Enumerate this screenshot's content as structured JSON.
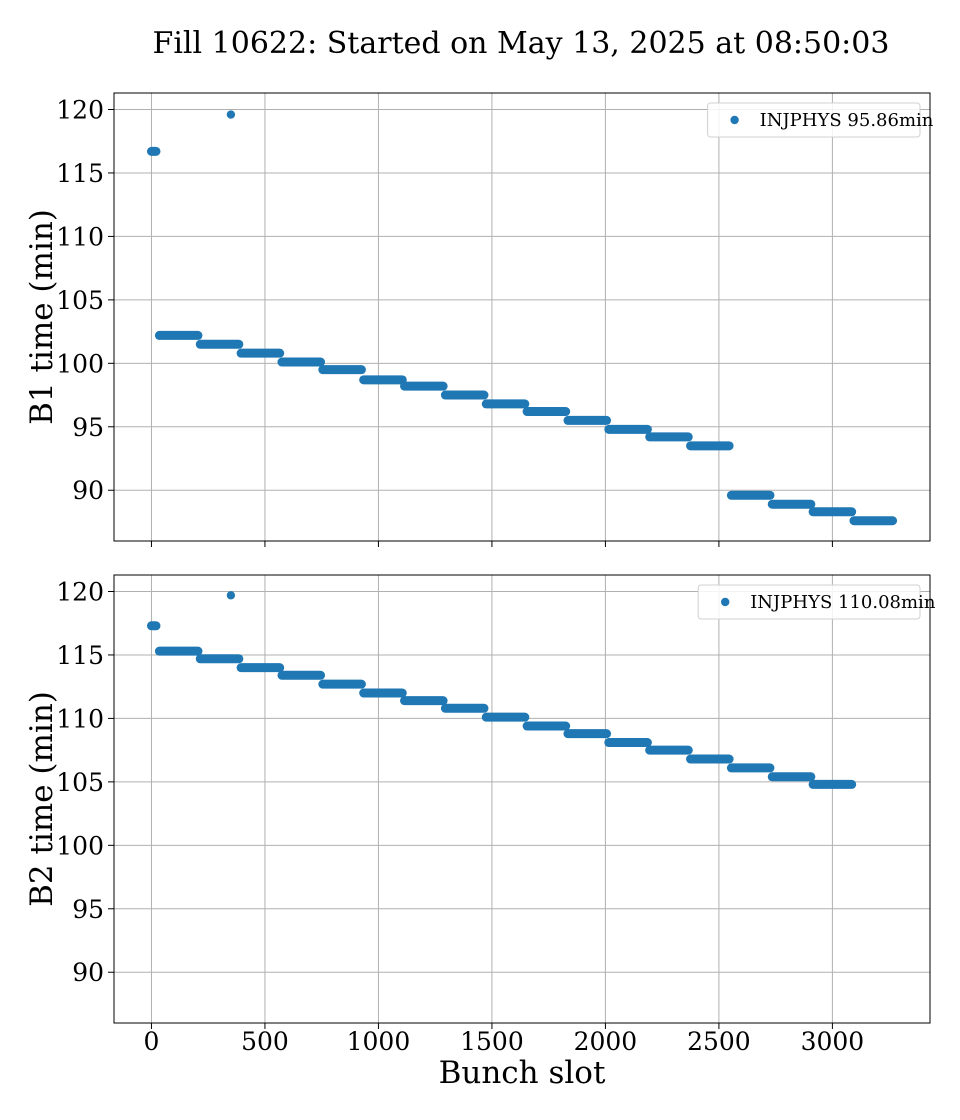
{
  "figure_title": "Fill 10622: Started on May 13, 2025 at 08:50:03",
  "chart_data": [
    {
      "type": "scatter",
      "name": "b1-panel",
      "ylabel": "B1 time (min)",
      "xlabel": "",
      "xlim": [
        -165,
        3430
      ],
      "ylim": [
        86,
        121.3
      ],
      "xticks": [
        0,
        500,
        1000,
        1500,
        2000,
        2500,
        3000
      ],
      "yticks": [
        90,
        95,
        100,
        105,
        110,
        115,
        120
      ],
      "show_xtick_labels": false,
      "grid": true,
      "legend": {
        "placement": "upper-right",
        "entries": [
          "INJPHYS 95.86min"
        ]
      },
      "color": "#1f77b4",
      "series": [
        {
          "name": "INJPHYS 95.86min",
          "segments": [
            {
              "x_start": 0,
              "x_end": 20,
              "y": 116.7
            },
            {
              "x_start": 350,
              "x_end": 350,
              "y": 119.6
            },
            {
              "x_start": 35,
              "x_end": 205,
              "y": 102.2
            },
            {
              "x_start": 215,
              "x_end": 385,
              "y": 101.5
            },
            {
              "x_start": 395,
              "x_end": 565,
              "y": 100.8
            },
            {
              "x_start": 575,
              "x_end": 745,
              "y": 100.1
            },
            {
              "x_start": 755,
              "x_end": 925,
              "y": 99.5
            },
            {
              "x_start": 935,
              "x_end": 1105,
              "y": 98.7
            },
            {
              "x_start": 1115,
              "x_end": 1285,
              "y": 98.2
            },
            {
              "x_start": 1295,
              "x_end": 1465,
              "y": 97.5
            },
            {
              "x_start": 1475,
              "x_end": 1645,
              "y": 96.8
            },
            {
              "x_start": 1655,
              "x_end": 1825,
              "y": 96.2
            },
            {
              "x_start": 1835,
              "x_end": 2005,
              "y": 95.5
            },
            {
              "x_start": 2015,
              "x_end": 2185,
              "y": 94.8
            },
            {
              "x_start": 2195,
              "x_end": 2365,
              "y": 94.2
            },
            {
              "x_start": 2375,
              "x_end": 2545,
              "y": 93.5
            },
            {
              "x_start": 2555,
              "x_end": 2725,
              "y": 89.6
            },
            {
              "x_start": 2735,
              "x_end": 2905,
              "y": 88.9
            },
            {
              "x_start": 2915,
              "x_end": 3085,
              "y": 88.3
            },
            {
              "x_start": 3095,
              "x_end": 3265,
              "y": 87.6
            }
          ]
        }
      ]
    },
    {
      "type": "scatter",
      "name": "b2-panel",
      "ylabel": "B2 time (min)",
      "xlabel": "Bunch slot",
      "xlim": [
        -165,
        3430
      ],
      "ylim": [
        86,
        121.3
      ],
      "xticks": [
        0,
        500,
        1000,
        1500,
        2000,
        2500,
        3000
      ],
      "yticks": [
        90,
        95,
        100,
        105,
        110,
        115,
        120
      ],
      "show_xtick_labels": true,
      "grid": true,
      "legend": {
        "placement": "upper-right",
        "entries": [
          "INJPHYS 110.08min"
        ]
      },
      "color": "#1f77b4",
      "series": [
        {
          "name": "INJPHYS 110.08min",
          "segments": [
            {
              "x_start": 0,
              "x_end": 20,
              "y": 117.3
            },
            {
              "x_start": 350,
              "x_end": 350,
              "y": 119.7
            },
            {
              "x_start": 35,
              "x_end": 205,
              "y": 115.3
            },
            {
              "x_start": 215,
              "x_end": 385,
              "y": 114.7
            },
            {
              "x_start": 395,
              "x_end": 565,
              "y": 114.0
            },
            {
              "x_start": 575,
              "x_end": 745,
              "y": 113.4
            },
            {
              "x_start": 755,
              "x_end": 925,
              "y": 112.7
            },
            {
              "x_start": 935,
              "x_end": 1105,
              "y": 112.0
            },
            {
              "x_start": 1115,
              "x_end": 1285,
              "y": 111.4
            },
            {
              "x_start": 1295,
              "x_end": 1465,
              "y": 110.8
            },
            {
              "x_start": 1475,
              "x_end": 1645,
              "y": 110.1
            },
            {
              "x_start": 1655,
              "x_end": 1825,
              "y": 109.4
            },
            {
              "x_start": 1835,
              "x_end": 2005,
              "y": 108.8
            },
            {
              "x_start": 2015,
              "x_end": 2185,
              "y": 108.1
            },
            {
              "x_start": 2195,
              "x_end": 2365,
              "y": 107.5
            },
            {
              "x_start": 2375,
              "x_end": 2545,
              "y": 106.8
            },
            {
              "x_start": 2555,
              "x_end": 2725,
              "y": 106.1
            },
            {
              "x_start": 2735,
              "x_end": 2905,
              "y": 105.4
            },
            {
              "x_start": 2915,
              "x_end": 3085,
              "y": 104.8
            }
          ]
        }
      ]
    }
  ]
}
